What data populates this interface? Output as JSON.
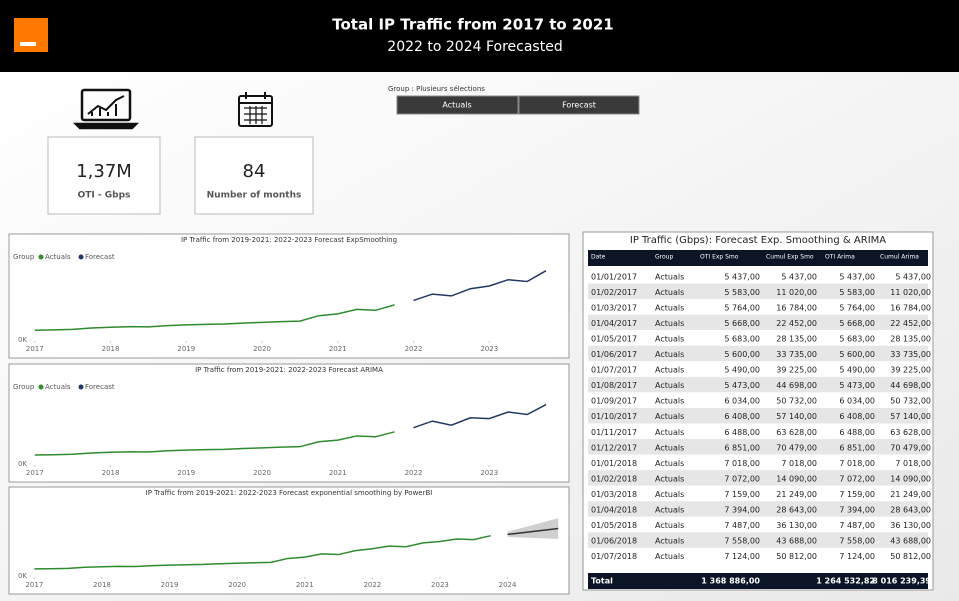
{
  "header": {
    "title": "Total IP Traffic from 2017 to 2021",
    "subtitle": "2022 to 2024 Forecasted"
  },
  "kpis": [
    {
      "value": "1,37M",
      "label": "OTI - Gbps"
    },
    {
      "value": "84",
      "label": "Number of months"
    }
  ],
  "slicer": {
    "title": "Group : Plusieurs sélections",
    "options": [
      "Actuals",
      "Forecast"
    ]
  },
  "chart_data": [
    {
      "type": "line",
      "title": "IP Traffic from 2019-2021: 2022-2023 Forecast ExpSmoothing",
      "legend_title": "Group",
      "xlim": [
        2016.95,
        2024.0
      ],
      "xticks": [
        2017,
        2018,
        2019,
        2020,
        2021,
        2022,
        2023
      ],
      "ylim": [
        0,
        40000
      ],
      "yticks": [
        {
          "value": 0,
          "label": "0K"
        }
      ],
      "series": [
        {
          "name": "Actuals",
          "color": "#2e8b2e",
          "x": [
            2017.0,
            2017.25,
            2017.5,
            2017.75,
            2018.0,
            2018.25,
            2018.5,
            2018.75,
            2019.0,
            2019.25,
            2019.5,
            2019.75,
            2020.0,
            2020.25,
            2020.5,
            2020.75,
            2021.0,
            2021.25,
            2021.5,
            2021.75
          ],
          "values": [
            5437,
            5600,
            5900,
            6700,
            7100,
            7400,
            7300,
            8000,
            8400,
            8700,
            8900,
            9400,
            9800,
            10200,
            10500,
            13500,
            14500,
            17000,
            16500,
            19500
          ]
        },
        {
          "name": "Forecast",
          "color": "#1f3864",
          "x": [
            2022.0,
            2022.25,
            2022.5,
            2022.75,
            2023.0,
            2023.25,
            2023.5,
            2023.75
          ],
          "values": [
            22000,
            25500,
            24500,
            28500,
            30000,
            33500,
            32500,
            38500
          ]
        }
      ]
    },
    {
      "type": "line",
      "title": "IP Traffic from 2019-2021: 2022-2023 Forecast ARIMA",
      "legend_title": "Group",
      "xlim": [
        2016.95,
        2024.0
      ],
      "xticks": [
        2017,
        2018,
        2019,
        2020,
        2021,
        2022,
        2023
      ],
      "ylim": [
        0,
        40000
      ],
      "yticks": [
        {
          "value": 0,
          "label": "0K"
        }
      ],
      "series": [
        {
          "name": "Actuals",
          "color": "#2e8b2e",
          "x": [
            2017.0,
            2017.25,
            2017.5,
            2017.75,
            2018.0,
            2018.25,
            2018.5,
            2018.75,
            2019.0,
            2019.25,
            2019.5,
            2019.75,
            2020.0,
            2020.25,
            2020.5,
            2020.75,
            2021.0,
            2021.25,
            2021.5,
            2021.75
          ],
          "values": [
            5437,
            5600,
            5900,
            6700,
            7100,
            7400,
            7300,
            8000,
            8400,
            8700,
            8900,
            9400,
            9800,
            10200,
            10500,
            13500,
            14500,
            17000,
            16500,
            19500
          ]
        },
        {
          "name": "Forecast",
          "color": "#1f3864",
          "x": [
            2022.0,
            2022.25,
            2022.5,
            2022.75,
            2023.0,
            2023.25,
            2023.5,
            2023.75
          ],
          "values": [
            22000,
            26000,
            23500,
            28000,
            27500,
            31500,
            30000,
            36000
          ]
        }
      ]
    },
    {
      "type": "line",
      "title": "IP Traffic from 2019-2021: 2022-2023 Forecast exponential smoothing by PowerBI",
      "xlim": [
        2016.95,
        2024.85
      ],
      "xticks": [
        2017,
        2018,
        2019,
        2020,
        2021,
        2022,
        2023,
        2024
      ],
      "ylim": [
        0,
        50000
      ],
      "yticks": [
        {
          "value": 0,
          "label": "0K"
        }
      ],
      "series": [
        {
          "color": "#2e8b2e",
          "x": [
            2017.0,
            2017.25,
            2017.5,
            2017.75,
            2018.0,
            2018.25,
            2018.5,
            2018.75,
            2019.0,
            2019.25,
            2019.5,
            2019.75,
            2020.0,
            2020.25,
            2020.5,
            2020.75,
            2021.0,
            2021.25,
            2021.5,
            2021.75,
            2022.0,
            2022.25,
            2022.5,
            2022.75,
            2023.0,
            2023.25,
            2023.5,
            2023.75
          ],
          "values": [
            5437,
            5600,
            5900,
            6700,
            7100,
            7400,
            7300,
            8000,
            8400,
            8700,
            8900,
            9400,
            9800,
            10200,
            10500,
            13500,
            14500,
            17000,
            16500,
            19500,
            21000,
            23000,
            22500,
            25500,
            26500,
            28500,
            28000,
            31000
          ]
        },
        {
          "color": "#333333",
          "x": [
            2024.0,
            2024.25,
            2024.5,
            2024.75
          ],
          "values": [
            32000,
            33500,
            35000,
            36500
          ],
          "lower": [
            30000,
            29500,
            29000,
            28500
          ],
          "upper": [
            34000,
            37500,
            41000,
            44500
          ]
        }
      ]
    }
  ],
  "table": {
    "title": "IP Traffic (Gbps): Forecast Exp. Smoothing & ARIMA",
    "columns": [
      "Date",
      "Group",
      "OTI Exp Smo",
      "Cumul Exp Smo",
      "OTI Arima",
      "Cumul Arima"
    ],
    "rows": [
      [
        "01/01/2017",
        "Actuals",
        "5 437,00",
        "5 437,00",
        "5 437,00",
        "5 437,00"
      ],
      [
        "01/02/2017",
        "Actuals",
        "5 583,00",
        "11 020,00",
        "5 583,00",
        "11 020,00"
      ],
      [
        "01/03/2017",
        "Actuals",
        "5 764,00",
        "16 784,00",
        "5 764,00",
        "16 784,00"
      ],
      [
        "01/04/2017",
        "Actuals",
        "5 668,00",
        "22 452,00",
        "5 668,00",
        "22 452,00"
      ],
      [
        "01/05/2017",
        "Actuals",
        "5 683,00",
        "28 135,00",
        "5 683,00",
        "28 135,00"
      ],
      [
        "01/06/2017",
        "Actuals",
        "5 600,00",
        "33 735,00",
        "5 600,00",
        "33 735,00"
      ],
      [
        "01/07/2017",
        "Actuals",
        "5 490,00",
        "39 225,00",
        "5 490,00",
        "39 225,00"
      ],
      [
        "01/08/2017",
        "Actuals",
        "5 473,00",
        "44 698,00",
        "5 473,00",
        "44 698,00"
      ],
      [
        "01/09/2017",
        "Actuals",
        "6 034,00",
        "50 732,00",
        "6 034,00",
        "50 732,00"
      ],
      [
        "01/10/2017",
        "Actuals",
        "6 408,00",
        "57 140,00",
        "6 408,00",
        "57 140,00"
      ],
      [
        "01/11/2017",
        "Actuals",
        "6 488,00",
        "63 628,00",
        "6 488,00",
        "63 628,00"
      ],
      [
        "01/12/2017",
        "Actuals",
        "6 851,00",
        "70 479,00",
        "6 851,00",
        "70 479,00"
      ],
      [
        "01/01/2018",
        "Actuals",
        "7 018,00",
        "7 018,00",
        "7 018,00",
        "7 018,00"
      ],
      [
        "01/02/2018",
        "Actuals",
        "7 072,00",
        "14 090,00",
        "7 072,00",
        "14 090,00"
      ],
      [
        "01/03/2018",
        "Actuals",
        "7 159,00",
        "21 249,00",
        "7 159,00",
        "21 249,00"
      ],
      [
        "01/04/2018",
        "Actuals",
        "7 394,00",
        "28 643,00",
        "7 394,00",
        "28 643,00"
      ],
      [
        "01/05/2018",
        "Actuals",
        "7 487,00",
        "36 130,00",
        "7 487,00",
        "36 130,00"
      ],
      [
        "01/06/2018",
        "Actuals",
        "7 558,00",
        "43 688,00",
        "7 558,00",
        "43 688,00"
      ],
      [
        "01/07/2018",
        "Actuals",
        "7 124,00",
        "50 812,00",
        "7 124,00",
        "50 812,00"
      ]
    ],
    "total": {
      "label": "Total",
      "oti_exp_smo": "1 368 886,00",
      "oti_arima": "1 264 532,82",
      "cumul_arima": "8 016 239,39"
    }
  }
}
